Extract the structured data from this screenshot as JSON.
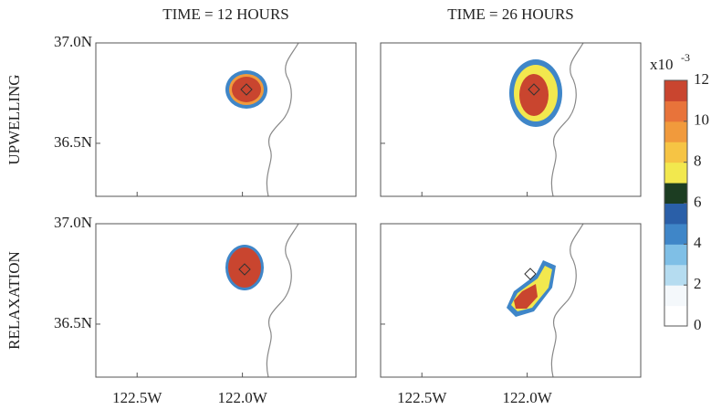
{
  "columns": [
    "TIME = 12 HOURS",
    "TIME = 26 HOURS"
  ],
  "rows": [
    "UPWELLING",
    "RELAXATION"
  ],
  "lat_lim": [
    36.236,
    37.0
  ],
  "lat_ticks": [
    {
      "value": 37.0,
      "label": "37.0N"
    },
    {
      "value": 36.5,
      "label": "36.5N"
    }
  ],
  "lon_lim": [
    -122.696,
    -121.461
  ],
  "lon_ticks": [
    {
      "value": -122.5,
      "label": "122.5W"
    },
    {
      "value": -122.0,
      "label": "122.0W"
    }
  ],
  "colorbar": {
    "unit_base": "x10",
    "unit_exponent": "-3",
    "lim": [
      0,
      12
    ],
    "ticks": [
      0,
      2,
      4,
      6,
      8,
      10,
      12
    ],
    "colors": [
      "#ffffff",
      "#f4f8fb",
      "#b5dcf0",
      "#7fbfe6",
      "#3f86c8",
      "#2a5fa8",
      "#1c3d22",
      "#f2e84e",
      "#f6c444",
      "#f19a3c",
      "#e8733a",
      "#c9452f"
    ]
  }
}
